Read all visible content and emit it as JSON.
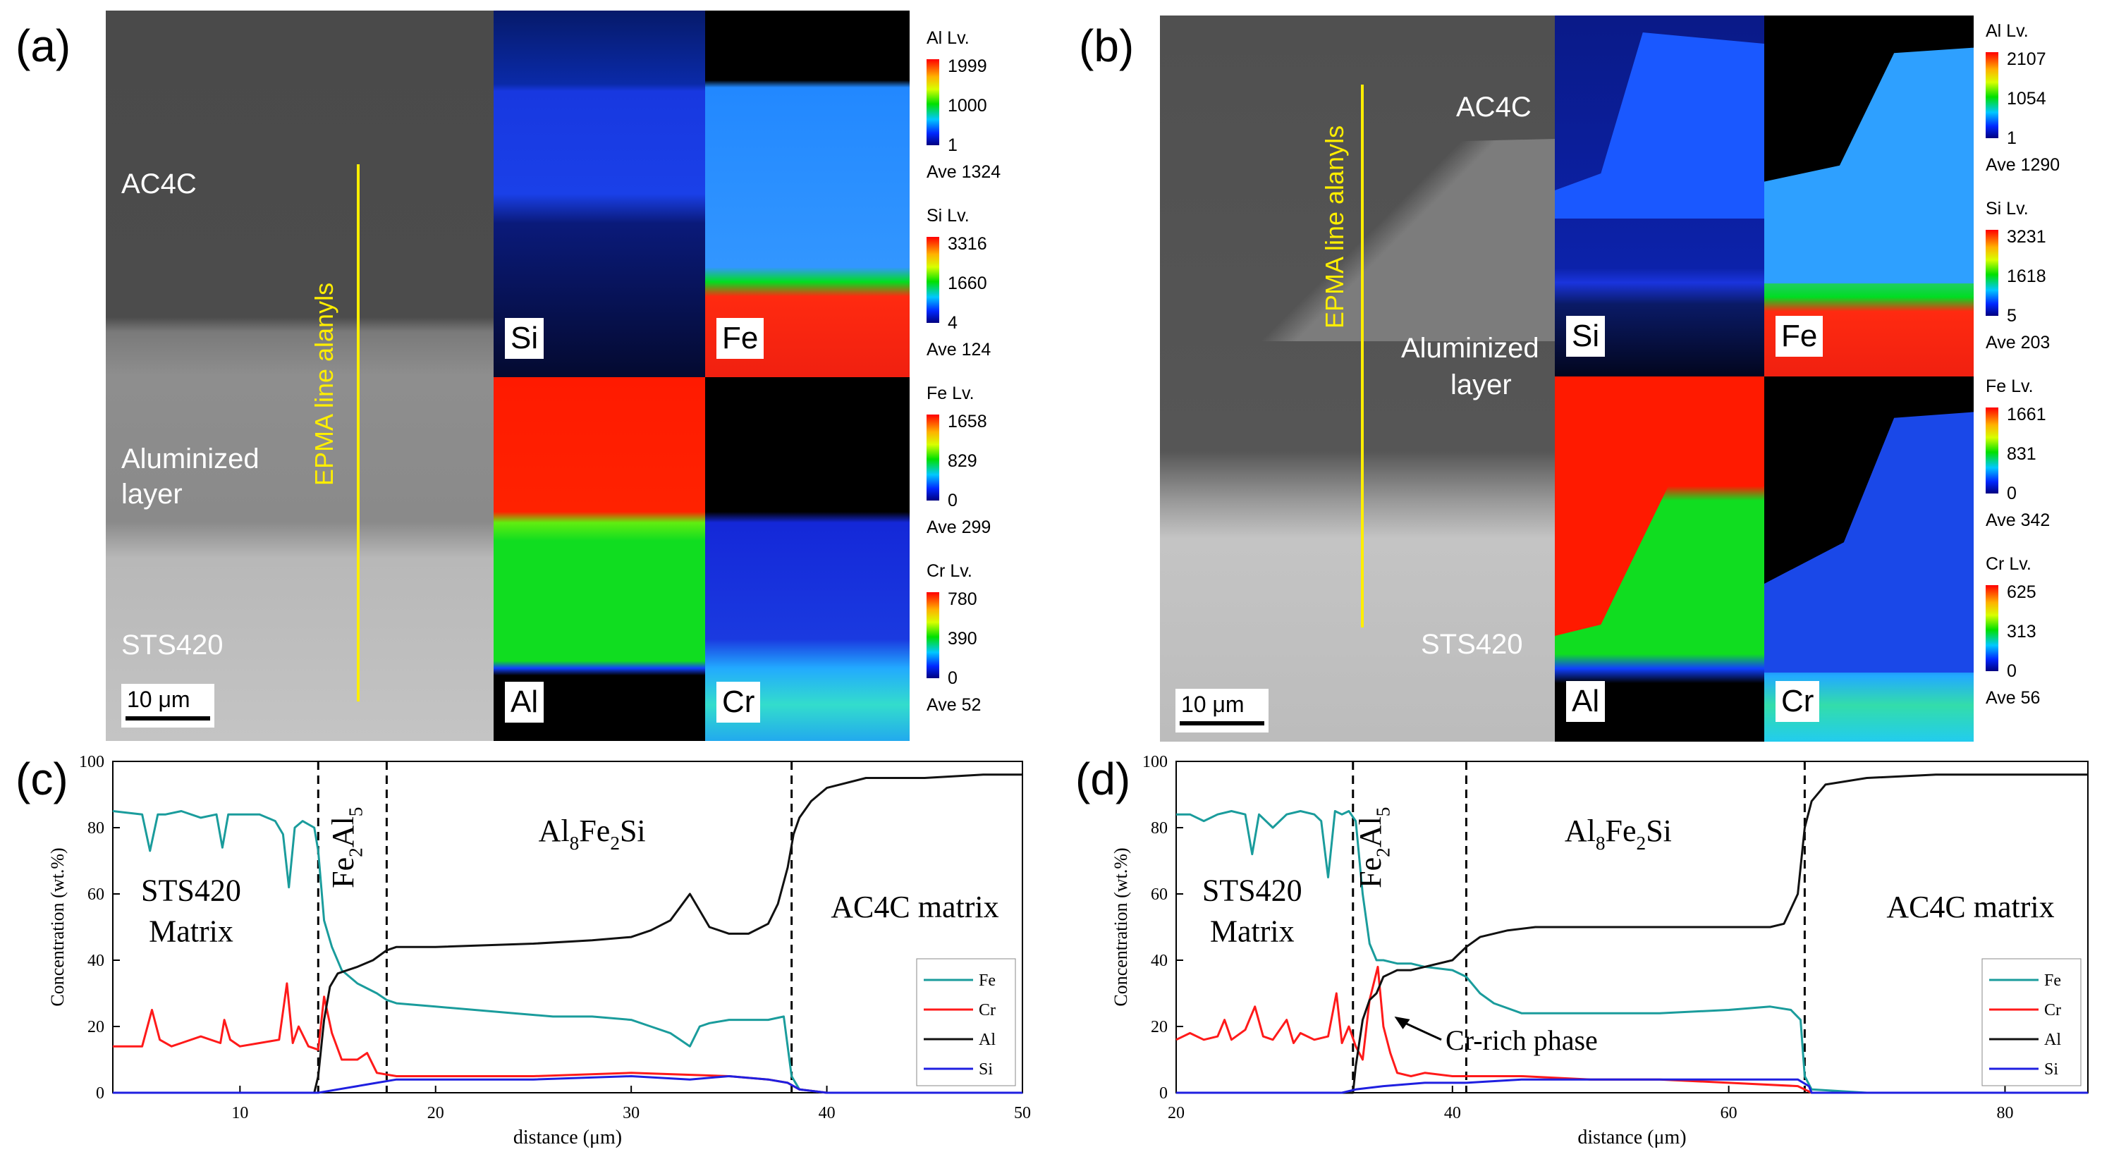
{
  "panels": {
    "a": {
      "letter": "(a)",
      "labels": {
        "matrix": "AC4C",
        "layer_1": "Aluminized",
        "layer_2": "layer",
        "substrate": "STS420",
        "line": "EPMA line alanyls",
        "scale": "10 μm"
      },
      "maps": {
        "tl": "Si",
        "tr": "Fe",
        "bl": "Al",
        "br": "Cr"
      },
      "legend": [
        {
          "title": "Al  Lv.",
          "max": "1999",
          "mid": "1000",
          "min": "1",
          "ave": "Ave 1324"
        },
        {
          "title": "Si  Lv.",
          "max": "3316",
          "mid": "1660",
          "min": "4",
          "ave": "Ave 124"
        },
        {
          "title": "Fe  Lv.",
          "max": "1658",
          "mid": "829",
          "min": "0",
          "ave": "Ave 299"
        },
        {
          "title": "Cr  Lv.",
          "max": "780",
          "mid": "390",
          "min": "0",
          "ave": "Ave 52"
        }
      ]
    },
    "b": {
      "letter": "(b)",
      "labels": {
        "matrix": "AC4C",
        "layer_1": "Aluminized",
        "layer_2": "layer",
        "substrate": "STS420",
        "line": "EPMA line alanyls",
        "scale": "10 μm"
      },
      "maps": {
        "tl": "Si",
        "tr": "Fe",
        "bl": "Al",
        "br": "Cr"
      },
      "legend": [
        {
          "title": "Al  Lv.",
          "max": "2107",
          "mid": "1054",
          "min": "1",
          "ave": "Ave 1290"
        },
        {
          "title": "Si  Lv.",
          "max": "3231",
          "mid": "1618",
          "min": "5",
          "ave": "Ave 203"
        },
        {
          "title": "Fe  Lv.",
          "max": "1661",
          "mid": "831",
          "min": "0",
          "ave": "Ave 342"
        },
        {
          "title": "Cr  Lv.",
          "max": "625",
          "mid": "313",
          "min": "0",
          "ave": "Ave 56"
        }
      ]
    }
  },
  "colors": {
    "Fe": "#1a9c9c",
    "Cr": "#ff1a1a",
    "Al": "#111111",
    "Si": "#1f1fe0",
    "line": "#ffee00"
  },
  "chart_data": [
    {
      "id": "c",
      "letter": "(c)",
      "type": "line",
      "xlabel": "distance (μm)",
      "ylabel": "Concentration (wt.%)",
      "xlim": [
        3.5,
        50
      ],
      "ylim": [
        0,
        100
      ],
      "xticks": [
        10,
        20,
        30,
        40,
        50
      ],
      "yticks": [
        0,
        20,
        40,
        60,
        80,
        100
      ],
      "boundaries": [
        14,
        17.5,
        38.2
      ],
      "annotations": [
        {
          "text_lines": [
            "STS420",
            "Matrix"
          ],
          "x": 7.5,
          "y": 58
        },
        {
          "text": "AC4C matrix",
          "x": 44.5,
          "y": 53
        },
        {
          "text_base": "Al",
          "parts": [
            [
              "Al",
              ""
            ],
            [
              "8",
              "sub"
            ],
            [
              "Fe",
              ""
            ],
            [
              "2",
              "sub"
            ],
            [
              "Si",
              ""
            ]
          ],
          "x": 28,
          "y": 76
        },
        {
          "rotated": true,
          "parts": [
            [
              "Fe",
              ""
            ],
            [
              "2",
              "sub"
            ],
            [
              "Al",
              ""
            ],
            [
              "5",
              "sub"
            ]
          ],
          "x": 15.8,
          "y": 74
        }
      ],
      "series": [
        {
          "name": "Fe",
          "x": [
            3.5,
            5,
            5.4,
            5.8,
            6.2,
            7,
            8,
            8.8,
            9.1,
            9.4,
            10,
            11,
            11.8,
            12.2,
            12.5,
            12.8,
            13.2,
            13.8,
            14,
            14.3,
            14.7,
            15.2,
            16,
            17,
            17.5,
            18,
            20,
            22,
            24,
            26,
            28,
            30,
            31,
            32,
            32.5,
            33,
            33.5,
            34,
            35,
            36,
            37,
            37.8,
            38.2,
            38.6,
            40,
            45,
            50
          ],
          "y": [
            85,
            84,
            73,
            84,
            84,
            85,
            83,
            84,
            74,
            84,
            84,
            84,
            82,
            78,
            62,
            80,
            82,
            80,
            73,
            52,
            44,
            37,
            33,
            30,
            28,
            27,
            26,
            25,
            24,
            23,
            23,
            22,
            20,
            18,
            16,
            14,
            20,
            21,
            22,
            22,
            22,
            23,
            5,
            1,
            0,
            0,
            0
          ]
        },
        {
          "name": "Cr",
          "x": [
            3.5,
            5,
            5.5,
            5.9,
            6.5,
            7,
            8,
            9,
            9.2,
            9.5,
            10,
            11,
            12,
            12.4,
            12.7,
            13,
            13.5,
            14,
            14.3,
            14.7,
            15.2,
            16,
            16.5,
            17,
            18,
            20,
            25,
            30,
            35,
            37,
            38,
            38.6,
            40,
            50
          ],
          "y": [
            14,
            14,
            25,
            16,
            14,
            15,
            17,
            15,
            22,
            16,
            14,
            15,
            16,
            33,
            15,
            20,
            14,
            13,
            29,
            18,
            10,
            10,
            12,
            6,
            5,
            5,
            5,
            6,
            5,
            4,
            3,
            1,
            0,
            0
          ]
        },
        {
          "name": "Al",
          "x": [
            3.5,
            13.8,
            14,
            14.3,
            14.6,
            15,
            15.5,
            16,
            16.8,
            17.5,
            18,
            20,
            25,
            28,
            30,
            31,
            32,
            32.5,
            33,
            33.5,
            34,
            35,
            36,
            37,
            37.5,
            38,
            38.3,
            38.6,
            39.2,
            40,
            42,
            45,
            48,
            50
          ],
          "y": [
            0,
            0,
            5,
            22,
            32,
            36,
            37,
            38,
            40,
            43,
            44,
            44,
            45,
            46,
            47,
            49,
            52,
            56,
            60,
            55,
            50,
            48,
            48,
            51,
            57,
            68,
            78,
            83,
            88,
            92,
            95,
            95,
            96,
            96
          ]
        },
        {
          "name": "Si",
          "x": [
            3.5,
            14,
            15,
            16,
            17,
            18,
            20,
            25,
            30,
            33,
            35,
            37,
            38,
            38.6,
            40,
            50
          ],
          "y": [
            0,
            0,
            1,
            2,
            3,
            4,
            4,
            4,
            5,
            4,
            5,
            4,
            3,
            1,
            0,
            0
          ]
        }
      ]
    },
    {
      "id": "d",
      "letter": "(d)",
      "type": "line",
      "xlabel": "distance (μm)",
      "ylabel": "Concentration (wt.%)",
      "xlim": [
        20,
        86
      ],
      "ylim": [
        0,
        100
      ],
      "xticks": [
        20,
        40,
        60,
        80
      ],
      "yticks": [
        0,
        20,
        40,
        60,
        80,
        100
      ],
      "boundaries": [
        32.8,
        41,
        65.5
      ],
      "annotations": [
        {
          "text_lines": [
            "STS420",
            "Matrix"
          ],
          "x": 25.5,
          "y": 58
        },
        {
          "text": "AC4C matrix",
          "x": 77.5,
          "y": 53
        },
        {
          "parts": [
            [
              "Al",
              ""
            ],
            [
              "8",
              "sub"
            ],
            [
              "Fe",
              ""
            ],
            [
              "2",
              "sub"
            ],
            [
              "Si",
              ""
            ]
          ],
          "x": 52,
          "y": 76
        },
        {
          "rotated": true,
          "parts": [
            [
              "Fe",
              ""
            ],
            [
              "2",
              "sub"
            ],
            [
              "Al",
              ""
            ],
            [
              "5",
              "sub"
            ]
          ],
          "x": 34.8,
          "y": 74
        },
        {
          "text": "Cr-rich phase",
          "x": 39.5,
          "y": 16,
          "arrow_to": [
            35.8,
            23
          ]
        }
      ],
      "series": [
        {
          "name": "Fe",
          "x": [
            20,
            21,
            22,
            23,
            24,
            25,
            25.5,
            26,
            27,
            28,
            29,
            30,
            30.5,
            31,
            31.5,
            32,
            32.5,
            33,
            33.5,
            34,
            34.5,
            35,
            36,
            37,
            38,
            40,
            41,
            42,
            43,
            45,
            50,
            55,
            60,
            63,
            64.5,
            65.2,
            65.5,
            66,
            70,
            80,
            86
          ],
          "y": [
            84,
            84,
            82,
            84,
            85,
            84,
            72,
            84,
            80,
            84,
            85,
            84,
            82,
            65,
            85,
            84,
            85,
            82,
            60,
            45,
            40,
            40,
            39,
            39,
            38,
            37,
            35,
            30,
            27,
            24,
            24,
            24,
            25,
            26,
            25,
            22,
            5,
            1,
            0,
            0,
            0
          ]
        },
        {
          "name": "Cr",
          "x": [
            20,
            21,
            22,
            23,
            23.5,
            24,
            25,
            25.7,
            26.3,
            27,
            28,
            28.5,
            29,
            30,
            31,
            31.6,
            32,
            32.5,
            33,
            33.5,
            34,
            34.6,
            35,
            35.5,
            36,
            37,
            38,
            40,
            42,
            45,
            50,
            55,
            60,
            65,
            65.5,
            66,
            70,
            86
          ],
          "y": [
            16,
            18,
            16,
            17,
            22,
            16,
            19,
            26,
            17,
            16,
            22,
            15,
            18,
            16,
            17,
            30,
            15,
            20,
            14,
            10,
            28,
            38,
            20,
            12,
            6,
            5,
            6,
            5,
            5,
            5,
            4,
            4,
            3,
            2,
            1,
            0,
            0,
            0
          ]
        },
        {
          "name": "Al",
          "x": [
            20,
            32.8,
            33,
            33.5,
            34,
            34.5,
            35,
            35.5,
            36,
            37,
            38,
            40,
            41,
            42,
            44,
            46,
            48,
            50,
            55,
            60,
            63,
            64,
            65,
            65.5,
            66,
            67,
            70,
            75,
            80,
            86
          ],
          "y": [
            0,
            0,
            8,
            22,
            28,
            30,
            35,
            36,
            37,
            37,
            38,
            40,
            44,
            47,
            49,
            50,
            50,
            50,
            50,
            50,
            50,
            51,
            60,
            80,
            88,
            93,
            95,
            96,
            96,
            96
          ]
        },
        {
          "name": "Si",
          "x": [
            20,
            32,
            33,
            35,
            38,
            41,
            45,
            50,
            55,
            60,
            65,
            65.8,
            66,
            86
          ],
          "y": [
            0,
            0,
            1,
            2,
            3,
            3,
            4,
            4,
            4,
            4,
            4,
            2,
            0,
            0
          ]
        }
      ]
    }
  ]
}
